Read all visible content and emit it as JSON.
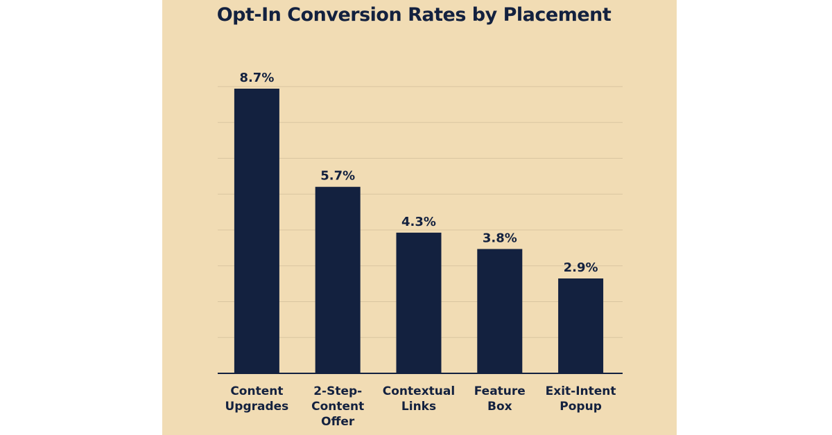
{
  "chart_data": {
    "type": "bar",
    "title": "Opt-In Conversion Rates by Placement",
    "categories": [
      [
        "Content",
        "Upgrades"
      ],
      [
        "2-Step-",
        "Content",
        "Offer"
      ],
      [
        "Contextual",
        "Links"
      ],
      [
        "Feature",
        "Box"
      ],
      [
        "Exit-Intent",
        "Popup"
      ]
    ],
    "values": [
      8.7,
      5.7,
      4.3,
      3.8,
      2.9
    ],
    "value_labels": [
      "8.7%",
      "5.7%",
      "4.3%",
      "3.8%",
      "2.9%"
    ],
    "unit": "%",
    "ylim": [
      0,
      9
    ],
    "grid": true,
    "legend": "none",
    "colors": {
      "bar": "#13213f",
      "background": "#f1dcb4",
      "grid": "#d9c5a0",
      "axis": "#13213f",
      "text": "#13213f"
    }
  }
}
